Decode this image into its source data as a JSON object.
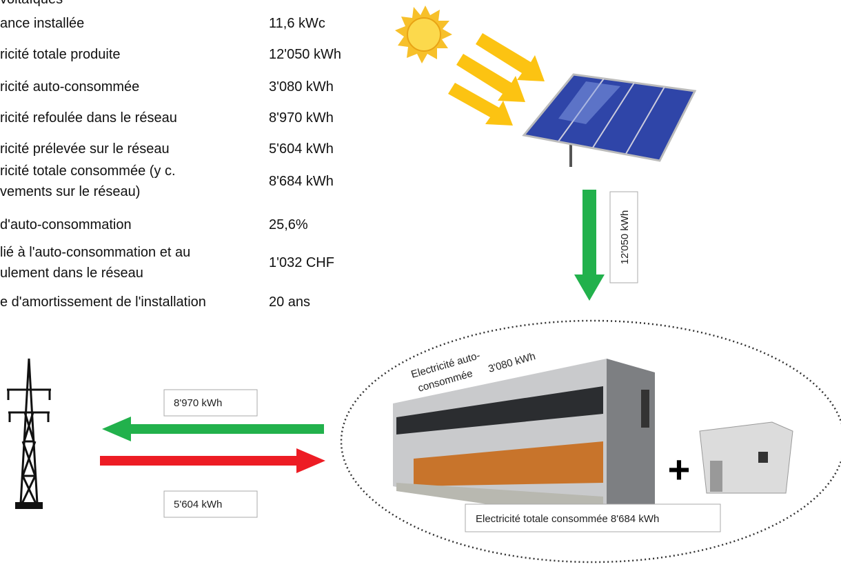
{
  "table": {
    "title": "voltaïques",
    "rows": [
      {
        "label": [
          "ance installée"
        ],
        "value": "11,6 kWc"
      },
      {
        "label": [
          "ricité totale produite"
        ],
        "value": "12'050 kWh"
      },
      {
        "label": [
          "ricité auto-consommée"
        ],
        "value": "3'080 kWh"
      },
      {
        "label": [
          "ricité refoulée dans le réseau"
        ],
        "value": "8'970 kWh"
      },
      {
        "label": [
          "ricité prélevée sur le réseau"
        ],
        "value": "5'604 kWh"
      },
      {
        "label": [
          "ricité totale consommée (y c.",
          "vements sur le réseau)"
        ],
        "value": "8'684 kWh"
      },
      {
        "label": [
          "d'auto-consommation"
        ],
        "value": "25,6%"
      },
      {
        "label": [
          "lié à l'auto-consommation et au",
          "ulement dans le réseau"
        ],
        "value": "1'032 CHF"
      },
      {
        "label": [
          "e d'amortissement de l'installation"
        ],
        "value": "20 ans"
      }
    ]
  },
  "diagram": {
    "production": "12'050 kWh",
    "injection": "8'970 kWh",
    "withdrawal": "5'604 kWh",
    "self_consumption": [
      "Electricité auto-",
      "consommée",
      "3'080 kWh"
    ],
    "total_consumption": "Electricité totale consommée 8'684 kWh"
  }
}
